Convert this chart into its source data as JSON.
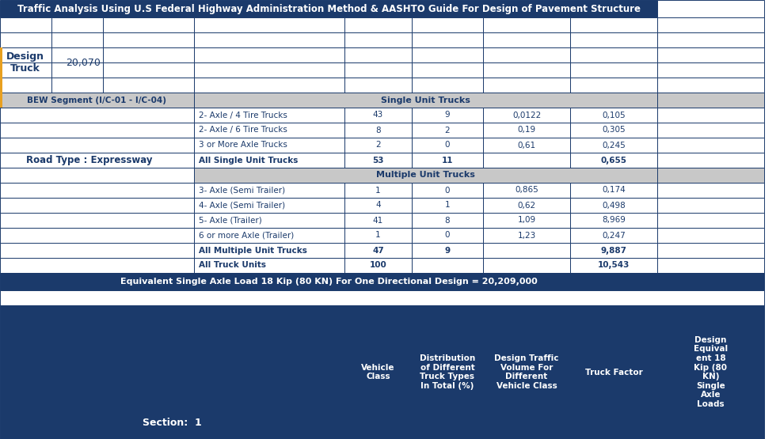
{
  "title": "Traffic Analysis Using U.S Federal Highway Administration Method & AASHTO Guide For Design of Pavement Structure",
  "title_bg": "#1b3a6b",
  "title_fg": "#ffffff",
  "gray_bg": "#c8c8c8",
  "dark_bg": "#1b3a6b",
  "dark_fg": "#ffffff",
  "white_bg": "#ffffff",
  "blue_fg": "#1b3a6b",
  "orange": "#e8a020",
  "section_label": "BEW Segment (I/C-01 - I/C-04)",
  "design_truck_label": "Design\nTruck",
  "design_truck_value": "20,070",
  "road_type_label": "Road Type : Expressway",
  "single_unit_header": "Single Unit Trucks",
  "multiple_unit_header": "Multiple Unit Trucks",
  "rows": [
    {
      "label": "2- Axle / 4 Tire Trucks",
      "c1": "43",
      "c2": "9",
      "c3": "0,0122",
      "c4": "0,105",
      "bold": false
    },
    {
      "label": "2- Axle / 6 Tire Trucks",
      "c1": "8",
      "c2": "2",
      "c3": "0,19",
      "c4": "0,305",
      "bold": false
    },
    {
      "label": "3 or More Axle Trucks",
      "c1": "2",
      "c2": "0",
      "c3": "0,61",
      "c4": "0,245",
      "bold": false
    },
    {
      "label": "All Single Unit Trucks",
      "c1": "53",
      "c2": "11",
      "c3": "",
      "c4": "0,655",
      "bold": true
    },
    {
      "label": "3- Axle (Semi Trailer)",
      "c1": "1",
      "c2": "0",
      "c3": "0,865",
      "c4": "0,174",
      "bold": false
    },
    {
      "label": "4- Axle (Semi Trailer)",
      "c1": "4",
      "c2": "1",
      "c3": "0,62",
      "c4": "0,498",
      "bold": false
    },
    {
      "label": "5- Axle (Trailer)",
      "c1": "41",
      "c2": "8",
      "c3": "1,09",
      "c4": "8,969",
      "bold": false
    },
    {
      "label": "6 or more Axle (Trailer)",
      "c1": "1",
      "c2": "0",
      "c3": "1,23",
      "c4": "0,247",
      "bold": false
    },
    {
      "label": "All Multiple Unit Trucks",
      "c1": "47",
      "c2": "9",
      "c3": "",
      "c4": "9,887",
      "bold": true
    },
    {
      "label": "All Truck Units",
      "c1": "100",
      "c2": "",
      "c3": "",
      "c4": "10,543",
      "bold": true
    }
  ],
  "footer_text": "Equivalent Single Axle Load 18 Kip (80 KN) For One Directional Design = 20,209,000",
  "section2_label": "Section:  1",
  "section2_headers": [
    "Vehicle\nClass",
    "Distribution\nof Different\nTruck Types\nIn Total (%)",
    "Design Traffic\nVolume For\nDifferent\nVehicle Class",
    "Truck Factor",
    "Design\nEquival\nent 18\nKip (80\nKN)\nSingle\nAxle\nLoads"
  ]
}
